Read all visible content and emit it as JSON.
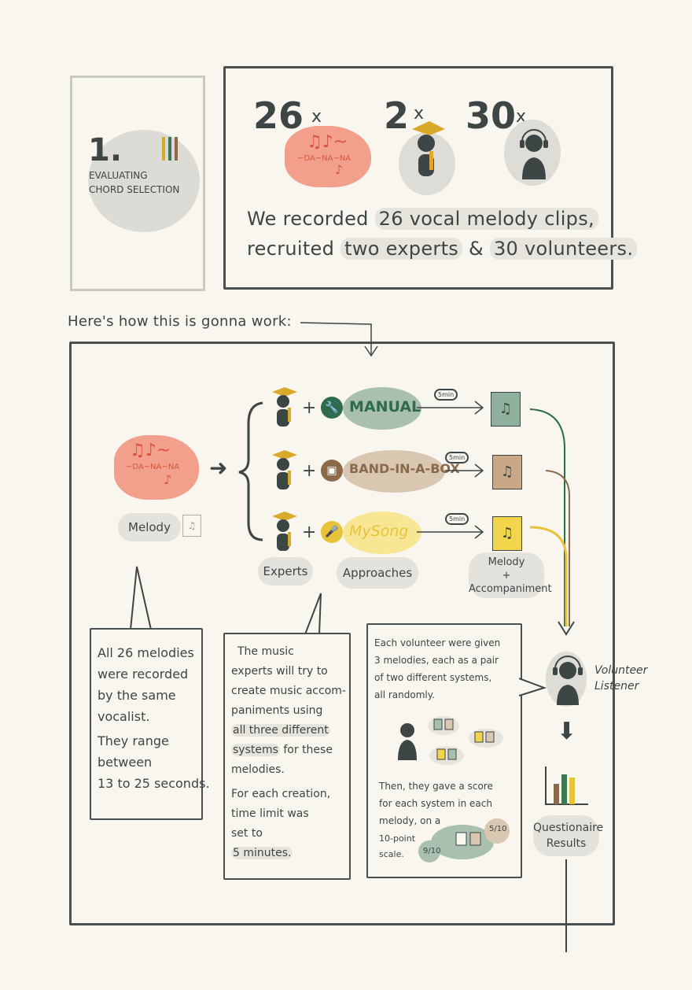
{
  "section": {
    "number": "1.",
    "title_line1": "EVALUATING",
    "title_line2": "CHORD SELECTION"
  },
  "stats": {
    "clips": {
      "count": "26",
      "mark": "x",
      "icon": "melody-cloud-icon"
    },
    "experts": {
      "count": "2",
      "mark": "x",
      "icon": "graduate-icon"
    },
    "volunteers": {
      "count": "30",
      "mark": "x",
      "icon": "headphones-person-icon"
    }
  },
  "melody_scribble": {
    "notes": "♫♪~",
    "syllables": "~DA~NA~NA",
    "tail": "♪"
  },
  "summary": {
    "line1_pre": "We recorded",
    "line1_hl": "26 vocal melody clips,",
    "line2_pre": "recruited",
    "line2_hl1": "two experts",
    "line2_mid": "&",
    "line2_hl2": "30 volunteers."
  },
  "intro": "Here's how this is gonna work:",
  "approaches": [
    {
      "name": "MANUAL",
      "icon": "wrench-icon",
      "color": "#2f6b4f",
      "blob": "#a9bfb0",
      "file": "#8fb09c",
      "time": "5min"
    },
    {
      "name": "BAND-IN-A-BOX",
      "icon": "box-icon",
      "color": "#8a6a4a",
      "blob": "#d9c7b2",
      "file": "#c9a887",
      "time": "5min"
    },
    {
      "name": "MySong",
      "icon": "microphone-icon",
      "color": "#e8c33a",
      "blob": "#f7e795",
      "file": "#f2d54a",
      "time": "5min"
    }
  ],
  "labels": {
    "melody": "Melody",
    "experts": "Experts",
    "approaches": "Approaches",
    "output_line1": "Melody",
    "output_plus": "+",
    "output_line2": "Accompaniment",
    "listener_line1": "Volunteer",
    "listener_line2": "Listener",
    "results_line1": "Questionaire",
    "results_line2": "Results"
  },
  "callout_melodies": [
    "All 26 melodies",
    "were recorded",
    "by the same",
    "vocalist.",
    "They range",
    "between",
    "13 to 25 seconds."
  ],
  "callout_experts": {
    "lines": [
      "The music",
      "experts will try to",
      "create music accom-",
      "paniments using"
    ],
    "hl1": "all three different",
    "hl2_pre": "systems",
    "hl2_post": " for these",
    "line_after": "melodies.",
    "time_lines": [
      "For each creation,",
      "time limit was",
      "set to"
    ],
    "time_hl": "5 minutes."
  },
  "callout_volunteers": {
    "lines1": [
      "Each volunteer were given",
      "3 melodies, each as a pair",
      "of two different systems,",
      "all randomly."
    ],
    "lines2": [
      "Then, they gave a score",
      "for each system in each",
      "melody, on a"
    ],
    "lines3": [
      "10-point",
      "scale."
    ],
    "score1": "5/10",
    "score2": "9/10"
  },
  "colors": {
    "ink": "#3d4545",
    "coral": "#f2a08c",
    "coral_ink": "#d9553e",
    "gold": "#d9a92a",
    "paper": "#f8f6ef"
  }
}
